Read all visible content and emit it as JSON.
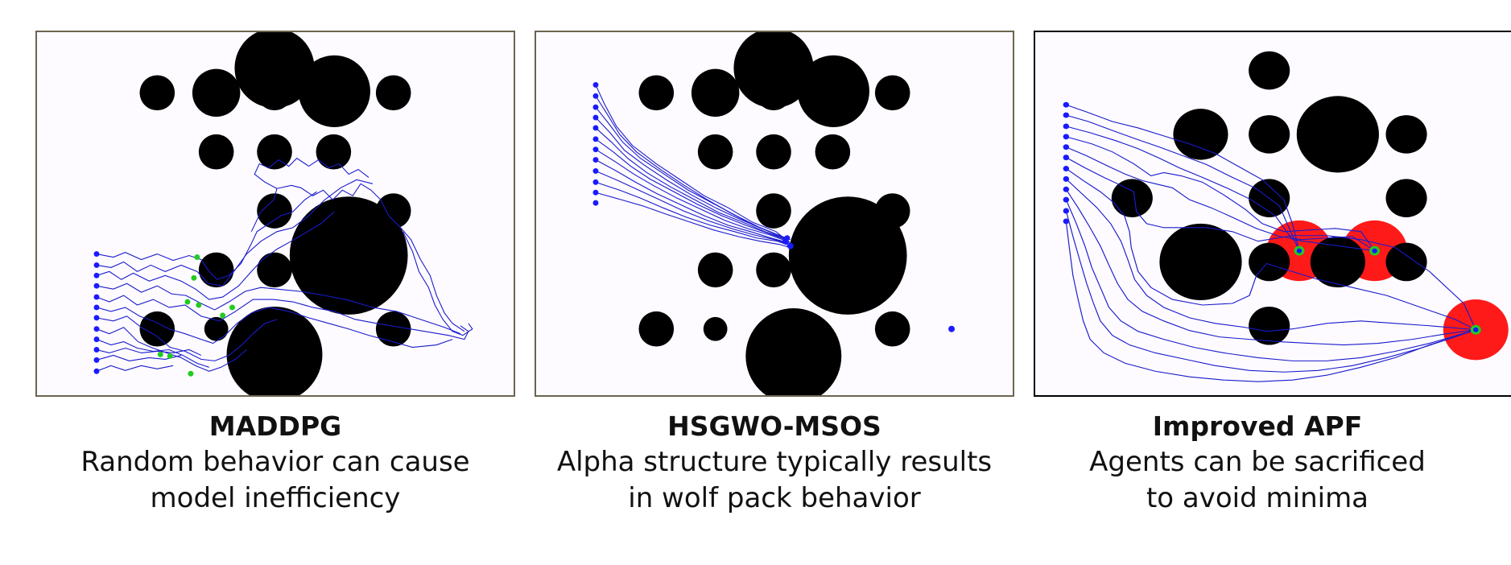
{
  "panels": [
    {
      "title": "MADDPG",
      "line1": "Random behavior can cause",
      "line2": "model inefficiency"
    },
    {
      "title": "HSGWO-MSOS",
      "line1": "Alpha structure typically results",
      "line2": "in wolf pack behavior"
    },
    {
      "title": "Improved APF",
      "line1": "Agents can be sacrificed",
      "line2": "to avoid minima"
    }
  ],
  "colors": {
    "obstacle": "#000000",
    "path": "#1a1acc",
    "agent": "#1a1aff",
    "goal_marker": "#22cc22",
    "repulsion_zone": "#ff1a1a",
    "panel_background": "#fdfbff"
  }
}
